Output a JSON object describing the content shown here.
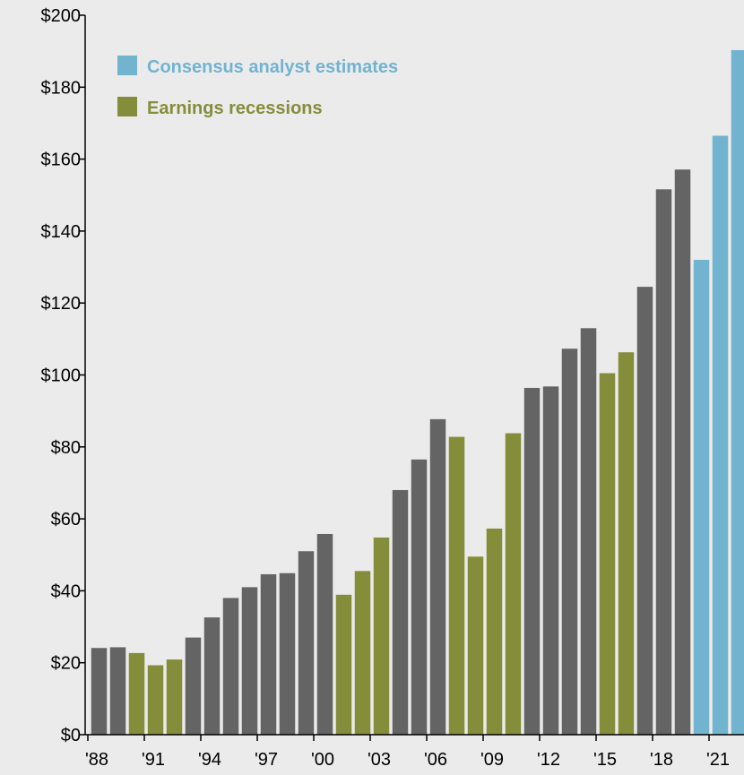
{
  "chart_data": {
    "type": "bar",
    "title": "",
    "xlabel": "",
    "ylabel": "",
    "ylim": [
      0,
      200
    ],
    "y_ticks": [
      "$0",
      "$20",
      "$40",
      "$60",
      "$80",
      "$100",
      "$120",
      "$140",
      "$160",
      "$180",
      "$200"
    ],
    "x_tick_labels": [
      "'88",
      "'91",
      "'94",
      "'97",
      "'00",
      "'03",
      "'06",
      "'09",
      "'12",
      "'15",
      "'18",
      "'21"
    ],
    "grid": false,
    "legend_position": "top-left",
    "legend": [
      {
        "label": "Consensus analyst estimates",
        "color": "#72b3d0",
        "kind": "estimate"
      },
      {
        "label": "Earnings recessions",
        "color": "#848e3a",
        "kind": "recession"
      }
    ],
    "colors": {
      "normal": "#646464",
      "recession": "#848e3a",
      "estimate": "#72b3d0",
      "background": "#ebebeb"
    },
    "categories": [
      "1988",
      "1989",
      "1990",
      "1991",
      "1992",
      "1993",
      "1994",
      "1995",
      "1996",
      "1997",
      "1998",
      "1999",
      "2000",
      "2001",
      "2002",
      "2003",
      "2004",
      "2005",
      "2006",
      "2007",
      "2008",
      "2009",
      "2010",
      "2011",
      "2012",
      "2013",
      "2014",
      "2015",
      "2016",
      "2017",
      "2018",
      "2019",
      "2020",
      "2021",
      "2022"
    ],
    "values": [
      24.1,
      24.3,
      22.7,
      19.3,
      20.9,
      27.0,
      32.6,
      38.0,
      41.0,
      44.6,
      44.9,
      51.0,
      55.8,
      38.9,
      45.5,
      54.8,
      68.0,
      76.5,
      87.7,
      82.8,
      49.5,
      57.3,
      83.8,
      96.4,
      96.8,
      107.3,
      113.0,
      100.5,
      106.3,
      124.5,
      151.6,
      157.1,
      132.0,
      166.5,
      190.3
    ],
    "kinds": [
      "normal",
      "normal",
      "recession",
      "recession",
      "recession",
      "normal",
      "normal",
      "normal",
      "normal",
      "normal",
      "normal",
      "normal",
      "normal",
      "recession",
      "recession",
      "recession",
      "normal",
      "normal",
      "normal",
      "recession",
      "recession",
      "recession",
      "recession",
      "normal",
      "normal",
      "normal",
      "normal",
      "recession",
      "recession",
      "normal",
      "normal",
      "normal",
      "estimate",
      "estimate",
      "estimate"
    ]
  }
}
